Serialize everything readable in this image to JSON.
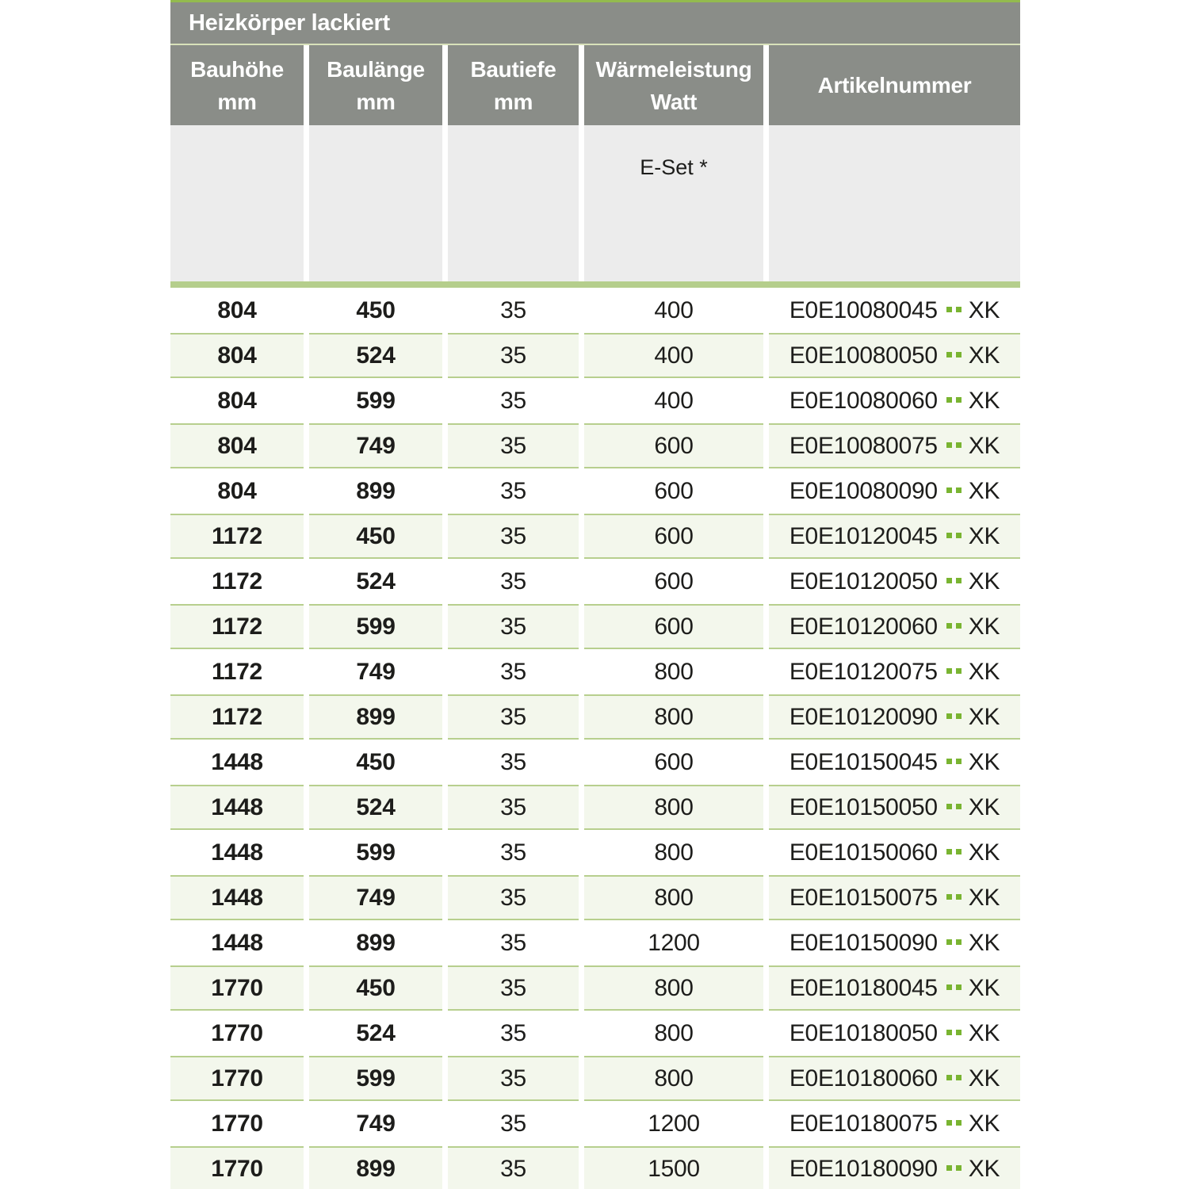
{
  "table": {
    "title": "Heizkörper lackiert",
    "columns": [
      {
        "line1": "Bauhöhe",
        "line2": "mm"
      },
      {
        "line1": "Baulänge",
        "line2": "mm"
      },
      {
        "line1": "Bautiefe",
        "line2": "mm"
      },
      {
        "line1": "Wärmeleistung",
        "line2": "Watt"
      },
      {
        "line1": "Artikelnummer",
        "line2": ""
      }
    ],
    "subheader": {
      "eset_label": "E-Set *"
    },
    "rows": [
      {
        "bauhoehe": "804",
        "baulaenge": "450",
        "bautiefe": "35",
        "watt": "400",
        "artikel": "E0E10080045",
        "artikel_suffix": "XK"
      },
      {
        "bauhoehe": "804",
        "baulaenge": "524",
        "bautiefe": "35",
        "watt": "400",
        "artikel": "E0E10080050",
        "artikel_suffix": "XK"
      },
      {
        "bauhoehe": "804",
        "baulaenge": "599",
        "bautiefe": "35",
        "watt": "400",
        "artikel": "E0E10080060",
        "artikel_suffix": "XK"
      },
      {
        "bauhoehe": "804",
        "baulaenge": "749",
        "bautiefe": "35",
        "watt": "600",
        "artikel": "E0E10080075",
        "artikel_suffix": "XK"
      },
      {
        "bauhoehe": "804",
        "baulaenge": "899",
        "bautiefe": "35",
        "watt": "600",
        "artikel": "E0E10080090",
        "artikel_suffix": "XK"
      },
      {
        "bauhoehe": "1172",
        "baulaenge": "450",
        "bautiefe": "35",
        "watt": "600",
        "artikel": "E0E10120045",
        "artikel_suffix": "XK"
      },
      {
        "bauhoehe": "1172",
        "baulaenge": "524",
        "bautiefe": "35",
        "watt": "600",
        "artikel": "E0E10120050",
        "artikel_suffix": "XK"
      },
      {
        "bauhoehe": "1172",
        "baulaenge": "599",
        "bautiefe": "35",
        "watt": "600",
        "artikel": "E0E10120060",
        "artikel_suffix": "XK"
      },
      {
        "bauhoehe": "1172",
        "baulaenge": "749",
        "bautiefe": "35",
        "watt": "800",
        "artikel": "E0E10120075",
        "artikel_suffix": "XK"
      },
      {
        "bauhoehe": "1172",
        "baulaenge": "899",
        "bautiefe": "35",
        "watt": "800",
        "artikel": "E0E10120090",
        "artikel_suffix": "XK"
      },
      {
        "bauhoehe": "1448",
        "baulaenge": "450",
        "bautiefe": "35",
        "watt": "600",
        "artikel": "E0E10150045",
        "artikel_suffix": "XK"
      },
      {
        "bauhoehe": "1448",
        "baulaenge": "524",
        "bautiefe": "35",
        "watt": "800",
        "artikel": "E0E10150050",
        "artikel_suffix": "XK"
      },
      {
        "bauhoehe": "1448",
        "baulaenge": "599",
        "bautiefe": "35",
        "watt": "800",
        "artikel": "E0E10150060",
        "artikel_suffix": "XK"
      },
      {
        "bauhoehe": "1448",
        "baulaenge": "749",
        "bautiefe": "35",
        "watt": "800",
        "artikel": "E0E10150075",
        "artikel_suffix": "XK"
      },
      {
        "bauhoehe": "1448",
        "baulaenge": "899",
        "bautiefe": "35",
        "watt": "1200",
        "artikel": "E0E10150090",
        "artikel_suffix": "XK"
      },
      {
        "bauhoehe": "1770",
        "baulaenge": "450",
        "bautiefe": "35",
        "watt": "800",
        "artikel": "E0E10180045",
        "artikel_suffix": "XK"
      },
      {
        "bauhoehe": "1770",
        "baulaenge": "524",
        "bautiefe": "35",
        "watt": "800",
        "artikel": "E0E10180050",
        "artikel_suffix": "XK"
      },
      {
        "bauhoehe": "1770",
        "baulaenge": "599",
        "bautiefe": "35",
        "watt": "800",
        "artikel": "E0E10180060",
        "artikel_suffix": "XK"
      },
      {
        "bauhoehe": "1770",
        "baulaenge": "749",
        "bautiefe": "35",
        "watt": "1200",
        "artikel": "E0E10180075",
        "artikel_suffix": "XK"
      },
      {
        "bauhoehe": "1770",
        "baulaenge": "899",
        "bautiefe": "35",
        "watt": "1500",
        "artikel": "E0E10180090",
        "artikel_suffix": "XK"
      }
    ]
  },
  "colors": {
    "header_gray": "#8a8d88",
    "top_accent_green": "#93ba4e",
    "pale_divider_green": "#d8e1ba",
    "subheader_gray": "#ececec",
    "section_bar_green": "#b5ce8c",
    "alt_row_fill": "#f3f7ec",
    "alt_row_border_green": "#b7cf8e",
    "placeholder_dot_green": "#79b431",
    "text_dark": "#1d1d1b",
    "header_text_white": "#ffffff"
  }
}
